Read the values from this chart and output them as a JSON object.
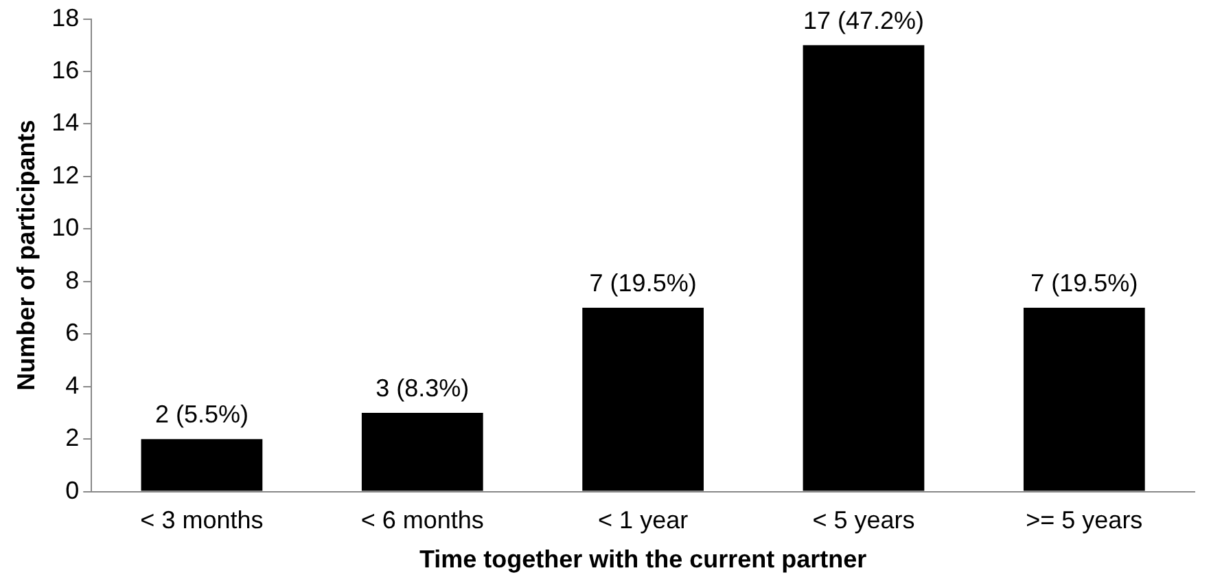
{
  "chart_data": {
    "type": "bar",
    "xlabel": "Time together with the current partner",
    "ylabel": "Number of participants",
    "categories": [
      "< 3 months",
      "< 6 months",
      "< 1 year",
      "< 5 years",
      ">= 5 years"
    ],
    "values": [
      2,
      3,
      7,
      17,
      7
    ],
    "value_labels": [
      "2 (5.5%)",
      "3 (8.3%)",
      "7 (19.5%)",
      "17 (47.2%)",
      "7 (19.5%)"
    ],
    "color": "#000000",
    "ylim": [
      0,
      18
    ],
    "yticks": [
      0,
      2,
      4,
      6,
      8,
      10,
      12,
      14,
      16,
      18
    ],
    "grid": false,
    "legend": false
  }
}
